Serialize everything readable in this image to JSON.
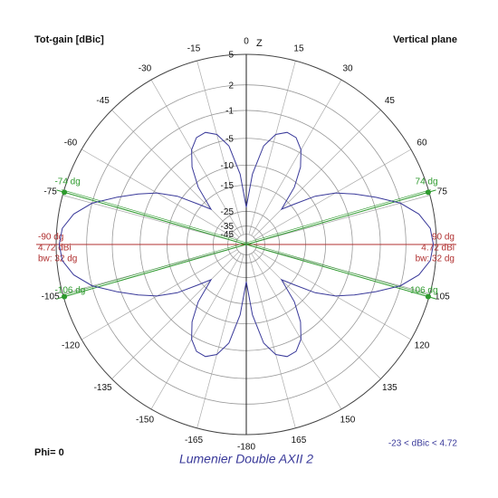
{
  "chart_data": {
    "type": "polar",
    "title": "Lumenier Double AXII 2",
    "y_label": "Tot-gain [dBic]",
    "plane_label": "Vertical plane",
    "phi_label": "Phi= 0",
    "range_label": "-23 < dBic < 4.72",
    "axis_label": "Z",
    "scale": "arrl-log",
    "rlim": [
      -45,
      5
    ],
    "rticks": [
      5,
      2,
      -1,
      -5,
      -10,
      -15,
      -25,
      -35,
      -45
    ],
    "angle_ticks": [
      0,
      15,
      30,
      45,
      60,
      75,
      105,
      120,
      135,
      150,
      165,
      -180,
      -165,
      -150,
      -135,
      -120,
      -105,
      -75,
      -60,
      -45,
      -30,
      -15
    ],
    "x": [
      -180,
      -175,
      -170,
      -165,
      -160,
      -155,
      -150,
      -145,
      -140,
      -135,
      -130,
      -125,
      -120,
      -115,
      -110,
      -105,
      -100,
      -95,
      -90,
      -85,
      -80,
      -75,
      -70,
      -65,
      -60,
      -55,
      -50,
      -45,
      -40,
      -35,
      -30,
      -25,
      -20,
      -15,
      -10,
      -5,
      0,
      5,
      10,
      15,
      20,
      25,
      30,
      35,
      40,
      45,
      50,
      55,
      60,
      65,
      70,
      75,
      80,
      85,
      90,
      95,
      100,
      105,
      110,
      115,
      120,
      125,
      130,
      135,
      140,
      145,
      150,
      155,
      160,
      165,
      170,
      175,
      180
    ],
    "series": [
      {
        "name": "Lumenier Double AXII 2",
        "color": "#3a3a9a",
        "values": [
          -23,
          -12,
          -6,
          -3.8,
          -3,
          -3.2,
          -4.5,
          -7,
          -11,
          -18,
          -14,
          -9,
          -5.5,
          -3,
          -0.5,
          2,
          3.6,
          4.5,
          4.72,
          4.5,
          3.6,
          2,
          -0.5,
          -3,
          -5.5,
          -9,
          -14,
          -18,
          -11,
          -7,
          -4.5,
          -3.2,
          -3,
          -3.8,
          -6,
          -12,
          -23,
          -12,
          -6,
          -3.8,
          -3,
          -3.2,
          -4.5,
          -7,
          -11,
          -18,
          -14,
          -9,
          -5.5,
          -3,
          -0.5,
          2,
          3.6,
          4.5,
          4.72,
          4.5,
          3.6,
          2,
          -0.5,
          -3,
          -5.5,
          -9,
          -14,
          -18,
          -11,
          -7,
          -4.5,
          -3.2,
          -3,
          -3.8,
          -6,
          -12,
          -23
        ]
      }
    ],
    "beam_markers": [
      {
        "value": 74,
        "label": "74 dg"
      },
      {
        "value": 106,
        "label": "106 dg"
      },
      {
        "value": -74,
        "label": "-74 dg"
      },
      {
        "value": -106,
        "label": "-106 dg"
      }
    ],
    "beam_color": "#2e9a2e",
    "max_markers": [
      {
        "angle": {
          "value": 90,
          "label": "90 dg"
        },
        "gain": {
          "value": 4.72,
          "label": "4.72 dBi"
        },
        "bw": {
          "value": 32,
          "label": "bw: 32 dg"
        }
      },
      {
        "angle": {
          "value": -90,
          "label": "-90 dg"
        },
        "gain": {
          "value": 4.72,
          "label": "4.72 dBi"
        },
        "bw": {
          "value": 32,
          "label": "bw: 32 dg"
        }
      }
    ],
    "max_color": "#b03030",
    "grid": true
  }
}
